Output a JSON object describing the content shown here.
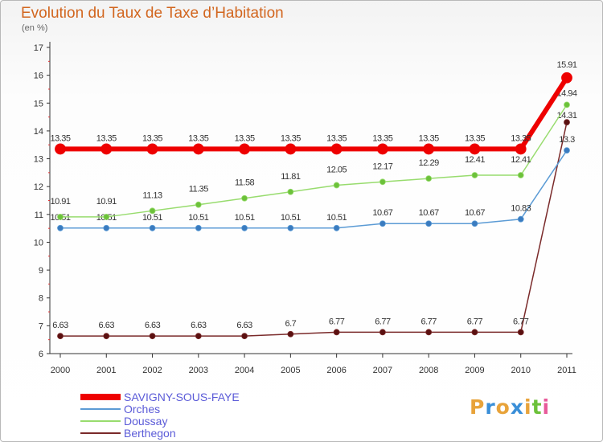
{
  "chart_data": {
    "type": "line",
    "title": "Evolution du Taux de Taxe d’Habitation",
    "subtitle": "(en %)",
    "xlabel": "",
    "ylabel": "",
    "categories": [
      "2000",
      "2001",
      "2002",
      "2003",
      "2004",
      "2005",
      "2006",
      "2007",
      "2008",
      "2009",
      "2010",
      "2011"
    ],
    "ylim": [
      6,
      17
    ],
    "yticks": [
      "6",
      "7",
      "8",
      "9",
      "10",
      "11",
      "12",
      "13",
      "14",
      "15",
      "16",
      "17"
    ],
    "grid": false,
    "legend_position": "bottom-left",
    "series": [
      {
        "name": "Berthegon",
        "color": "#7a2a2a",
        "marker_color": "#5a1010",
        "values": [
          6.63,
          6.63,
          6.63,
          6.63,
          6.63,
          6.7,
          6.77,
          6.77,
          6.77,
          6.77,
          6.77,
          14.31
        ],
        "labels": [
          "6.63",
          "6.63",
          "6.63",
          "6.63",
          "6.63",
          "6.7",
          "6.77",
          "6.77",
          "6.77",
          "6.77",
          "6.77",
          "14.31"
        ]
      },
      {
        "name": "Orches",
        "color": "#5b9bd5",
        "marker_color": "#3a7bbf",
        "values": [
          10.51,
          10.51,
          10.51,
          10.51,
          10.51,
          10.51,
          10.51,
          10.67,
          10.67,
          10.67,
          10.83,
          13.3
        ],
        "labels": [
          "10.51",
          "10.51",
          "10.51",
          "10.51",
          "10.51",
          "10.51",
          "10.51",
          "10.67",
          "10.67",
          "10.67",
          "10.83",
          "13.3"
        ]
      },
      {
        "name": "Doussay",
        "color": "#98dc6e",
        "marker_color": "#6cc13a",
        "values": [
          10.91,
          10.91,
          11.13,
          11.35,
          11.58,
          11.81,
          12.05,
          12.17,
          12.29,
          12.41,
          12.41,
          14.94
        ],
        "labels": [
          "10.91",
          "10.91",
          "11.13",
          "11.35",
          "11.58",
          "11.81",
          "12.05",
          "12.17",
          "12.29",
          "12.41",
          "12.41",
          "14.94"
        ]
      },
      {
        "name": "SAVIGNY-SOUS-FAYE",
        "color": "#ee0000",
        "marker_color": "#ee0000",
        "values": [
          13.35,
          13.35,
          13.35,
          13.35,
          13.35,
          13.35,
          13.35,
          13.35,
          13.35,
          13.35,
          13.35,
          15.91
        ],
        "labels": [
          "13.35",
          "13.35",
          "13.35",
          "13.35",
          "13.35",
          "13.35",
          "13.35",
          "13.35",
          "13.35",
          "13.35",
          "13.35",
          "15.91"
        ]
      }
    ],
    "legend_order": [
      "SAVIGNY-SOUS-FAYE",
      "Orches",
      "Doussay",
      "Berthegon"
    ]
  },
  "logo": {
    "letters": [
      "P",
      "r",
      "o",
      "x",
      "i",
      "t",
      "i"
    ],
    "colors": [
      "#e8a33a",
      "#3a8fd8",
      "#e8a33a",
      "#3a8fd8",
      "#e8a33a",
      "#6cc13a",
      "#e85a9a"
    ]
  }
}
